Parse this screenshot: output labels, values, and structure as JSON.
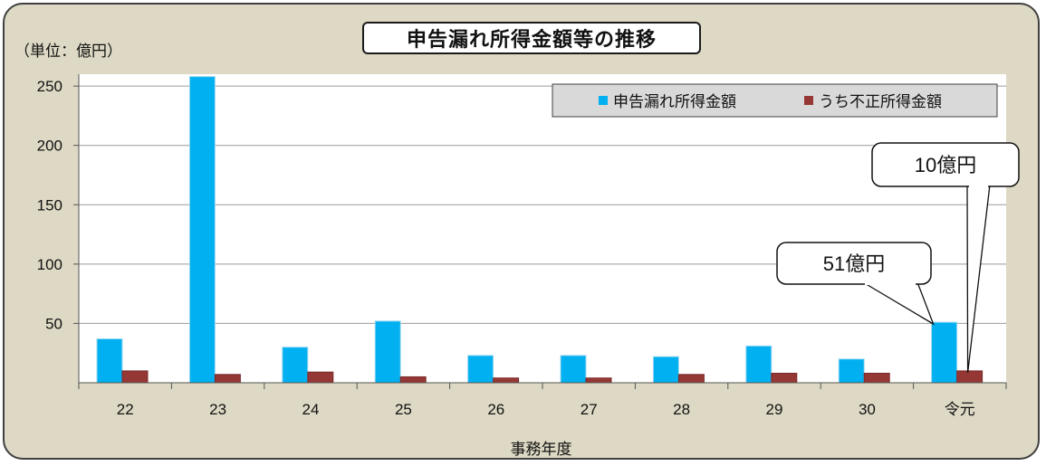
{
  "chart_data": {
    "type": "bar",
    "title": "申告漏れ所得金額等の推移",
    "unit_label": "（単位：億円）",
    "xlabel": "事務年度",
    "ylabel": "",
    "ylim": [
      0,
      260
    ],
    "yticks": [
      50,
      100,
      150,
      200,
      250
    ],
    "categories": [
      "22",
      "23",
      "24",
      "25",
      "26",
      "27",
      "28",
      "29",
      "30",
      "令元"
    ],
    "series": [
      {
        "name": "申告漏れ所得金額",
        "color": "#00b0f0",
        "values": [
          37,
          258,
          30,
          52,
          23,
          23,
          22,
          31,
          20,
          51
        ]
      },
      {
        "name": "うち不正所得金額",
        "color": "#953735",
        "values": [
          10,
          7,
          9,
          5,
          4,
          4,
          7,
          8,
          8,
          10
        ]
      }
    ],
    "legend_position": "top-right",
    "grid": true,
    "annotations": [
      {
        "text": "51億円",
        "series": 0,
        "category": "令元"
      },
      {
        "text": "10億円",
        "series": 1,
        "category": "令元"
      }
    ]
  }
}
